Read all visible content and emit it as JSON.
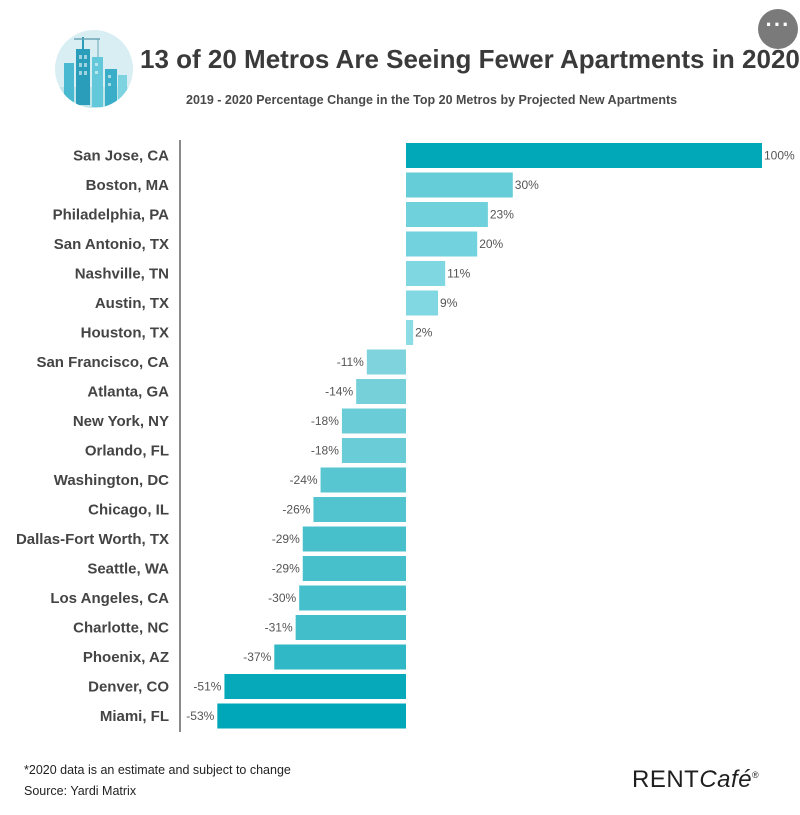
{
  "title": "13 of 20 Metros Are Seeing Fewer Apartments in 2020",
  "subtitle": "2019 - 2020 Percentage Change in the Top 20 Metros by Projected New Apartments",
  "footnote": "*2020 data is an estimate and subject to change",
  "source": "Source: Yardi Matrix",
  "brand": {
    "rent": "RENT",
    "cafe": "Café",
    "mark": "®"
  },
  "menu": {
    "label": "···"
  },
  "colors": {
    "negative_scale": [
      "#9fdfe5",
      "#00a7b8"
    ],
    "positive_scale": [
      "#8fdde6",
      "#00a8b8"
    ],
    "axis": "#8a8a8a",
    "category_text": "#444444",
    "value_text": "#555555"
  },
  "chart_data": {
    "type": "bar",
    "orientation": "horizontal",
    "categories": [
      "San Jose, CA",
      "Boston, MA",
      "Philadelphia, PA",
      "San Antonio, TX",
      "Nashville, TN",
      "Austin, TX",
      "Houston, TX",
      "San Francisco, CA",
      "Atlanta, GA",
      "New York, NY",
      "Orlando, FL",
      "Washington, DC",
      "Chicago, IL",
      "Dallas-Fort Worth, TX",
      "Seattle, WA",
      "Los Angeles, CA",
      "Charlotte, NC",
      "Phoenix, AZ",
      "Denver, CO",
      "Miami, FL"
    ],
    "values": [
      100,
      30,
      23,
      20,
      11,
      9,
      2,
      -11,
      -14,
      -18,
      -18,
      -24,
      -26,
      -29,
      -29,
      -30,
      -31,
      -37,
      -51,
      -53
    ],
    "labels": [
      "100%",
      "30%",
      "23%",
      "20%",
      "11%",
      "9%",
      "2%",
      "-11%",
      "-14%",
      "-18%",
      "-18%",
      "-24%",
      "-26%",
      "-29%",
      "-29%",
      "-30%",
      "-31%",
      "-37%",
      "-51%",
      "-53%"
    ],
    "xlim": [
      -55,
      100
    ],
    "unit": "%",
    "legend": "none",
    "grid": false
  }
}
